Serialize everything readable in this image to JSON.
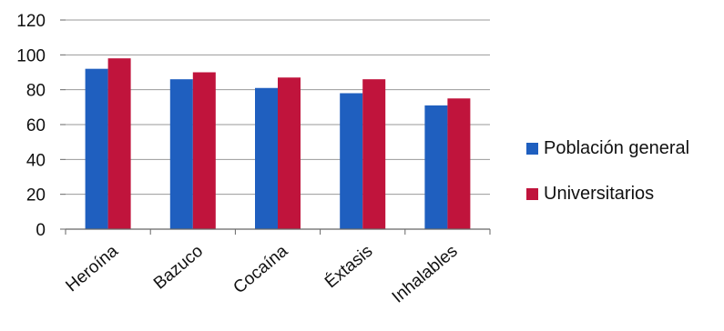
{
  "chart_data": {
    "type": "bar",
    "categories": [
      "Heroína",
      "Bazuco",
      "Cocaína",
      "Éxtasis",
      "Inhalables"
    ],
    "series": [
      {
        "name": "Población general",
        "color": "#1f5fbf",
        "values": [
          92,
          86,
          81,
          78,
          71
        ]
      },
      {
        "name": "Universitarios",
        "color": "#c0143c",
        "values": [
          98,
          90,
          87,
          86,
          75
        ]
      }
    ],
    "yticks": [
      "0",
      "20",
      "40",
      "60",
      "80",
      "100",
      "120"
    ],
    "ylim": [
      0,
      120
    ],
    "grid": true,
    "legend_position": "right"
  }
}
